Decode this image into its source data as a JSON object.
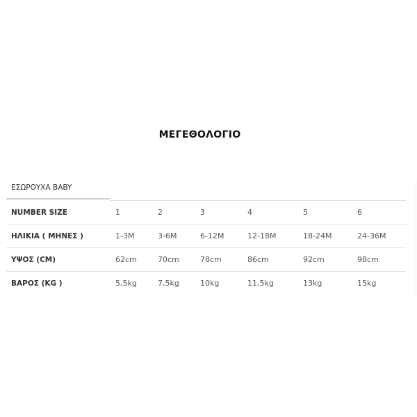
{
  "title": "ΜΕΓΕΘΟΛΟΓΙΟ",
  "tab": "ΕΣΩΡΟΥΧΑ BABY",
  "rows": [
    {
      "label": "NUMBER SIZE",
      "values": [
        "1",
        "2",
        "3",
        "4",
        "5",
        "6"
      ]
    },
    {
      "label": "ΗΛΙΚΙΑ ( ΜΗΝΕΣ )",
      "values": [
        "1-3M",
        "3-6M",
        "6-12M",
        "12-18M",
        "18-24M",
        "24-36M"
      ]
    },
    {
      "label": "ΥΨΟΣ (CM)",
      "values": [
        "62cm",
        "70cm",
        "78cm",
        "86cm",
        "92cm",
        "98cm"
      ]
    },
    {
      "label": "ΒΑΡΟΣ (KG )",
      "values": [
        "5,5kg",
        "7,5kg",
        "10kg",
        "11,5kg",
        "13kg",
        "15kg"
      ]
    }
  ]
}
